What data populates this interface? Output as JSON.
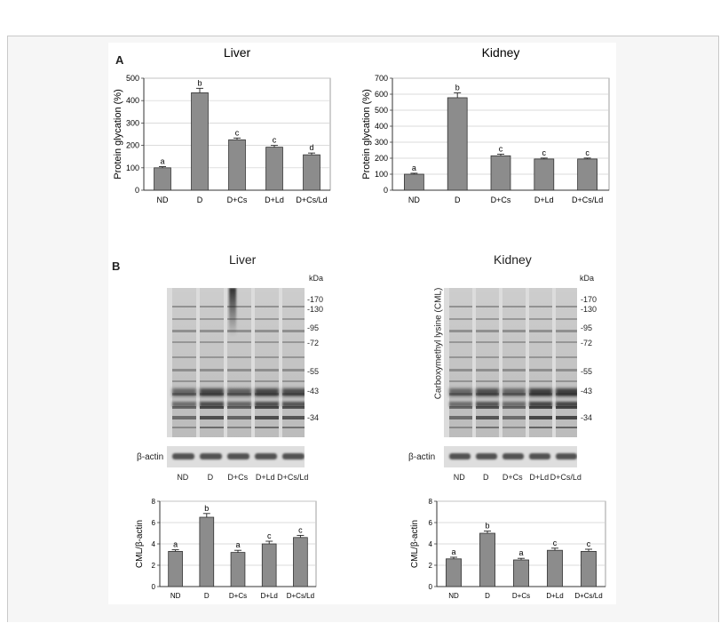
{
  "panel_labels": {
    "a": "A",
    "b": "B"
  },
  "chart_data": [
    {
      "type": "bar",
      "title": "Liver",
      "ylabel": "Protein glycation (%)",
      "categories": [
        "ND",
        "D",
        "D+Cs",
        "D+Ld",
        "D+Cs/Ld"
      ],
      "values": [
        100,
        435,
        225,
        192,
        158
      ],
      "errors": [
        5,
        20,
        8,
        8,
        8
      ],
      "letters": [
        "a",
        "b",
        "c",
        "c",
        "d"
      ],
      "ylim": [
        0,
        500
      ],
      "yticks": [
        0,
        100,
        200,
        300,
        400,
        500
      ],
      "grid": true,
      "bar_color": "#8c8c8c"
    },
    {
      "type": "bar",
      "title": "Kidney",
      "ylabel": "Protein glycation (%)",
      "categories": [
        "ND",
        "D",
        "D+Cs",
        "D+Ld",
        "D+Cs/Ld"
      ],
      "values": [
        100,
        578,
        215,
        195,
        195
      ],
      "errors": [
        6,
        30,
        10,
        6,
        6
      ],
      "letters": [
        "a",
        "b",
        "c",
        "c",
        "c"
      ],
      "ylim": [
        0,
        700
      ],
      "yticks": [
        0,
        100,
        200,
        300,
        400,
        500,
        600,
        700
      ],
      "grid": true,
      "bar_color": "#8c8c8c"
    },
    {
      "type": "bar",
      "ylabel": "CML/β-actin",
      "categories": [
        "ND",
        "D",
        "D+Cs",
        "D+Ld",
        "D+Cs/Ld"
      ],
      "values": [
        3.3,
        6.5,
        3.2,
        4.0,
        4.6
      ],
      "errors": [
        0.15,
        0.35,
        0.2,
        0.25,
        0.2
      ],
      "letters": [
        "a",
        "b",
        "a",
        "c",
        "c"
      ],
      "ylim": [
        0,
        8
      ],
      "yticks": [
        0,
        2,
        4,
        6,
        8
      ],
      "grid": true,
      "bar_color": "#8c8c8c"
    },
    {
      "type": "bar",
      "ylabel": "CML/β-actin",
      "categories": [
        "ND",
        "D",
        "D+Cs",
        "D+Ld",
        "D+Cs/Ld"
      ],
      "values": [
        2.6,
        5.0,
        2.5,
        3.4,
        3.3
      ],
      "errors": [
        0.15,
        0.2,
        0.15,
        0.2,
        0.2
      ],
      "letters": [
        "a",
        "b",
        "a",
        "c",
        "c"
      ],
      "ylim": [
        0,
        8
      ],
      "yticks": [
        0,
        2,
        4,
        6,
        8
      ],
      "grid": true,
      "bar_color": "#8c8c8c"
    }
  ],
  "blots": {
    "liver_title": "Liver",
    "kidney_title": "Kidney",
    "kda": "kDa",
    "cml_label": "Carboxymethyl lysine (CML)",
    "actin_label": "β-actin",
    "markers": [
      "-170",
      "-130",
      "-95",
      "-72",
      "-55",
      "-43",
      "-34"
    ],
    "lanes": [
      "ND",
      "D",
      "D+Cs",
      "D+Ld",
      "D+Cs/Ld"
    ]
  }
}
